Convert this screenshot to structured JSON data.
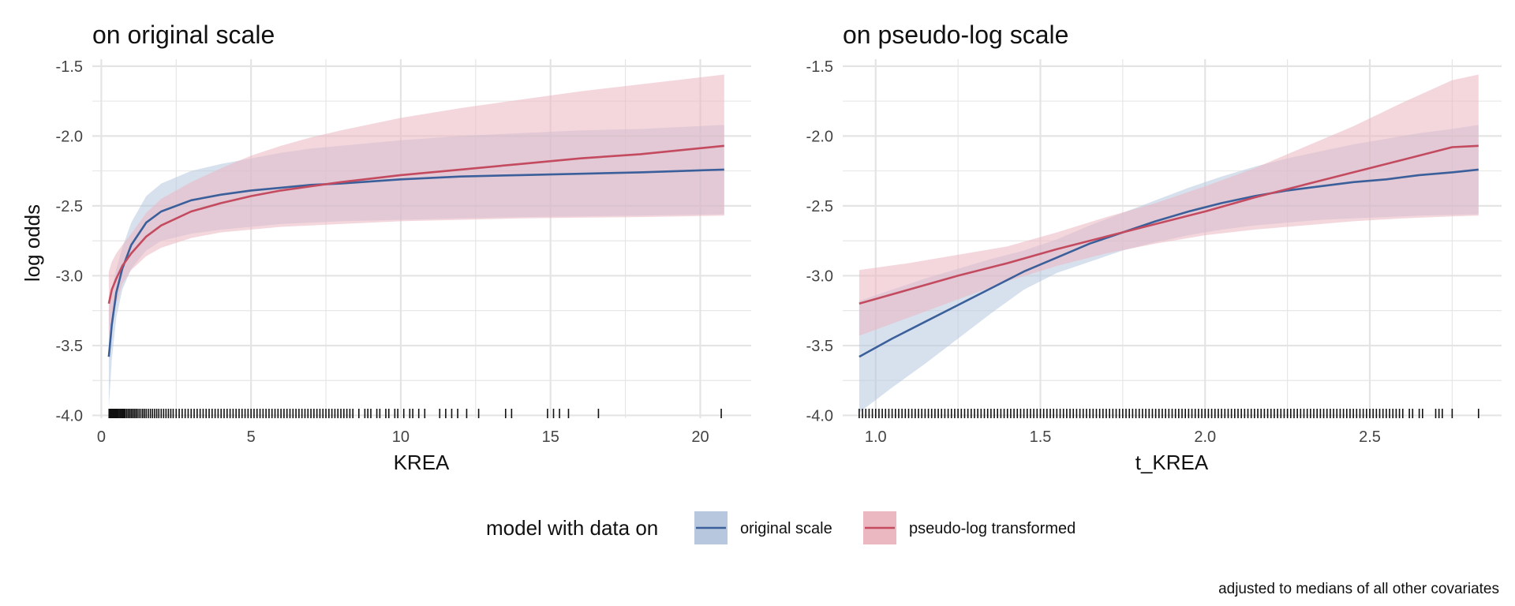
{
  "colors": {
    "original": "#3A5F9A",
    "original_band": "#B7C8DE",
    "pseudo_log": "#C34A5F",
    "pseudo_log_band": "#EBB7C1",
    "grid": "#E4E4E4",
    "rug": "#111111"
  },
  "legend": {
    "title": "model with data on",
    "items": [
      "original scale",
      "pseudo-log transformed"
    ]
  },
  "caption": "adjusted to medians of all other covariates",
  "chart_data": [
    {
      "type": "line",
      "title": "on original scale",
      "xlabel": "KREA",
      "ylabel": "log odds",
      "xlim": [
        -0.3,
        21.7
      ],
      "ylim": [
        -4.02,
        -1.45
      ],
      "x_ticks": [
        0,
        5,
        10,
        15,
        20
      ],
      "x_tick_labels": [
        "0",
        "5",
        "10",
        "15",
        "20"
      ],
      "y_ticks": [
        -4.0,
        -3.5,
        -3.0,
        -2.5,
        -2.0,
        -1.5
      ],
      "y_tick_labels": [
        "-4.0",
        "-3.5",
        "-3.0",
        "-2.5",
        "-2.0",
        "-1.5"
      ],
      "grid": true,
      "series": [
        {
          "name": "original scale",
          "x": [
            0.25,
            0.35,
            0.5,
            0.7,
            1.0,
            1.5,
            2.0,
            3.0,
            4.0,
            5.0,
            6.0,
            7.0,
            8.0,
            10.0,
            12.0,
            14.0,
            16.0,
            18.0,
            20.8
          ],
          "y": [
            -3.58,
            -3.35,
            -3.12,
            -2.95,
            -2.78,
            -2.62,
            -2.54,
            -2.46,
            -2.42,
            -2.39,
            -2.37,
            -2.35,
            -2.34,
            -2.31,
            -2.29,
            -2.28,
            -2.27,
            -2.26,
            -2.24
          ],
          "lower": [
            -3.95,
            -3.6,
            -3.3,
            -3.1,
            -2.95,
            -2.82,
            -2.75,
            -2.7,
            -2.67,
            -2.65,
            -2.63,
            -2.62,
            -2.61,
            -2.6,
            -2.59,
            -2.58,
            -2.575,
            -2.57,
            -2.56
          ],
          "upper": [
            -3.22,
            -3.1,
            -2.95,
            -2.8,
            -2.62,
            -2.43,
            -2.34,
            -2.25,
            -2.2,
            -2.16,
            -2.12,
            -2.09,
            -2.07,
            -2.03,
            -2.0,
            -1.98,
            -1.96,
            -1.95,
            -1.92
          ]
        },
        {
          "name": "pseudo-log transformed",
          "x": [
            0.25,
            0.35,
            0.5,
            0.7,
            1.0,
            1.5,
            2.0,
            3.0,
            4.0,
            5.0,
            6.0,
            7.0,
            8.0,
            10.0,
            12.0,
            14.0,
            16.0,
            18.0,
            20.8
          ],
          "y": [
            -3.2,
            -3.1,
            -3.02,
            -2.93,
            -2.84,
            -2.72,
            -2.64,
            -2.54,
            -2.48,
            -2.43,
            -2.39,
            -2.36,
            -2.33,
            -2.28,
            -2.24,
            -2.2,
            -2.16,
            -2.13,
            -2.07
          ],
          "lower": [
            -3.44,
            -3.3,
            -3.2,
            -3.06,
            -2.96,
            -2.86,
            -2.8,
            -2.73,
            -2.69,
            -2.67,
            -2.65,
            -2.64,
            -2.63,
            -2.61,
            -2.6,
            -2.59,
            -2.585,
            -2.58,
            -2.57
          ],
          "upper": [
            -2.97,
            -2.9,
            -2.84,
            -2.78,
            -2.7,
            -2.55,
            -2.45,
            -2.33,
            -2.23,
            -2.14,
            -2.07,
            -2.01,
            -1.96,
            -1.87,
            -1.8,
            -1.74,
            -1.68,
            -1.63,
            -1.56
          ]
        }
      ],
      "rug": [
        0.26,
        0.28,
        0.3,
        0.32,
        0.35,
        0.38,
        0.41,
        0.44,
        0.47,
        0.5,
        0.53,
        0.56,
        0.6,
        0.64,
        0.68,
        0.72,
        0.76,
        0.8,
        0.85,
        0.9,
        0.95,
        1.0,
        1.05,
        1.1,
        1.15,
        1.2,
        1.26,
        1.32,
        1.38,
        1.44,
        1.5,
        1.57,
        1.64,
        1.71,
        1.78,
        1.85,
        1.92,
        2.0,
        2.08,
        2.16,
        2.24,
        2.32,
        2.4,
        2.5,
        2.6,
        2.7,
        2.8,
        2.9,
        3.0,
        3.1,
        3.2,
        3.3,
        3.4,
        3.5,
        3.6,
        3.7,
        3.8,
        3.9,
        4.0,
        4.1,
        4.2,
        4.3,
        4.4,
        4.5,
        4.6,
        4.7,
        4.8,
        4.9,
        5.0,
        5.1,
        5.2,
        5.3,
        5.4,
        5.5,
        5.6,
        5.7,
        5.8,
        5.9,
        6.0,
        6.1,
        6.2,
        6.3,
        6.4,
        6.5,
        6.6,
        6.7,
        6.8,
        6.9,
        7.0,
        7.1,
        7.2,
        7.3,
        7.4,
        7.5,
        7.6,
        7.7,
        7.8,
        7.9,
        8.0,
        8.1,
        8.2,
        8.3,
        8.4,
        8.6,
        8.8,
        8.9,
        9.0,
        9.2,
        9.3,
        9.5,
        9.6,
        9.8,
        9.9,
        10.1,
        10.3,
        10.4,
        10.6,
        10.8,
        11.3,
        11.5,
        11.7,
        11.9,
        12.2,
        12.6,
        13.5,
        13.7,
        14.9,
        15.1,
        15.3,
        15.6,
        16.6,
        20.7
      ]
    },
    {
      "type": "line",
      "title": "on pseudo-log scale",
      "xlabel": "t_KREA",
      "ylabel": "",
      "xlim": [
        0.9,
        2.9
      ],
      "ylim": [
        -4.02,
        -1.45
      ],
      "x_ticks": [
        1.0,
        1.5,
        2.0,
        2.5
      ],
      "x_tick_labels": [
        "1.0",
        "1.5",
        "2.0",
        "2.5"
      ],
      "y_ticks": [
        -4.0,
        -3.5,
        -3.0,
        -2.5,
        -2.0,
        -1.5
      ],
      "y_tick_labels": [
        "-4.0",
        "-3.5",
        "-3.0",
        "-2.5",
        "-2.0",
        "-1.5"
      ],
      "grid": true,
      "series": [
        {
          "name": "original scale",
          "x": [
            0.95,
            1.05,
            1.15,
            1.25,
            1.35,
            1.45,
            1.55,
            1.65,
            1.75,
            1.85,
            1.95,
            2.05,
            2.15,
            2.25,
            2.35,
            2.45,
            2.55,
            2.65,
            2.75,
            2.83
          ],
          "y": [
            -3.58,
            -3.45,
            -3.33,
            -3.21,
            -3.09,
            -2.97,
            -2.87,
            -2.77,
            -2.69,
            -2.61,
            -2.54,
            -2.48,
            -2.43,
            -2.39,
            -2.36,
            -2.33,
            -2.31,
            -2.28,
            -2.26,
            -2.24
          ],
          "lower": [
            -3.98,
            -3.8,
            -3.63,
            -3.45,
            -3.27,
            -3.1,
            -2.98,
            -2.9,
            -2.82,
            -2.76,
            -2.71,
            -2.67,
            -2.64,
            -2.62,
            -2.6,
            -2.59,
            -2.58,
            -2.57,
            -2.565,
            -2.56
          ],
          "upper": [
            -3.18,
            -3.1,
            -3.02,
            -2.95,
            -2.88,
            -2.82,
            -2.74,
            -2.64,
            -2.55,
            -2.46,
            -2.37,
            -2.29,
            -2.22,
            -2.16,
            -2.11,
            -2.06,
            -2.02,
            -1.98,
            -1.95,
            -1.92
          ]
        },
        {
          "name": "pseudo-log transformed",
          "x": [
            0.95,
            1.1,
            1.25,
            1.4,
            1.55,
            1.7,
            1.85,
            2.0,
            2.15,
            2.3,
            2.45,
            2.6,
            2.75,
            2.83
          ],
          "y": [
            -3.2,
            -3.1,
            -3.0,
            -2.91,
            -2.81,
            -2.72,
            -2.63,
            -2.54,
            -2.44,
            -2.35,
            -2.26,
            -2.17,
            -2.08,
            -2.07
          ],
          "lower": [
            -3.43,
            -3.3,
            -3.17,
            -3.04,
            -2.93,
            -2.84,
            -2.77,
            -2.71,
            -2.67,
            -2.64,
            -2.61,
            -2.59,
            -2.575,
            -2.57
          ],
          "upper": [
            -2.96,
            -2.91,
            -2.85,
            -2.79,
            -2.69,
            -2.58,
            -2.48,
            -2.36,
            -2.23,
            -2.08,
            -1.93,
            -1.76,
            -1.6,
            -1.56
          ]
        }
      ],
      "rug": [
        0.95,
        0.96,
        0.97,
        0.98,
        0.99,
        1.0,
        1.01,
        1.02,
        1.03,
        1.04,
        1.05,
        1.06,
        1.07,
        1.08,
        1.09,
        1.1,
        1.11,
        1.12,
        1.13,
        1.14,
        1.15,
        1.16,
        1.17,
        1.18,
        1.19,
        1.2,
        1.21,
        1.22,
        1.23,
        1.24,
        1.25,
        1.26,
        1.27,
        1.28,
        1.29,
        1.3,
        1.31,
        1.32,
        1.33,
        1.34,
        1.35,
        1.36,
        1.37,
        1.38,
        1.39,
        1.4,
        1.41,
        1.42,
        1.43,
        1.44,
        1.45,
        1.46,
        1.47,
        1.48,
        1.49,
        1.5,
        1.51,
        1.52,
        1.53,
        1.54,
        1.55,
        1.56,
        1.57,
        1.58,
        1.59,
        1.6,
        1.61,
        1.62,
        1.63,
        1.64,
        1.65,
        1.66,
        1.67,
        1.68,
        1.69,
        1.7,
        1.71,
        1.72,
        1.73,
        1.74,
        1.75,
        1.76,
        1.77,
        1.78,
        1.79,
        1.8,
        1.81,
        1.82,
        1.83,
        1.84,
        1.85,
        1.86,
        1.87,
        1.88,
        1.89,
        1.9,
        1.91,
        1.92,
        1.93,
        1.94,
        1.95,
        1.96,
        1.97,
        1.98,
        1.99,
        2.0,
        2.01,
        2.02,
        2.03,
        2.04,
        2.05,
        2.06,
        2.07,
        2.08,
        2.09,
        2.1,
        2.11,
        2.12,
        2.13,
        2.14,
        2.15,
        2.16,
        2.17,
        2.18,
        2.19,
        2.2,
        2.21,
        2.22,
        2.23,
        2.24,
        2.25,
        2.26,
        2.27,
        2.28,
        2.29,
        2.3,
        2.31,
        2.32,
        2.33,
        2.34,
        2.35,
        2.36,
        2.37,
        2.38,
        2.39,
        2.4,
        2.41,
        2.42,
        2.43,
        2.44,
        2.45,
        2.46,
        2.47,
        2.48,
        2.49,
        2.5,
        2.51,
        2.52,
        2.53,
        2.54,
        2.55,
        2.56,
        2.57,
        2.58,
        2.59,
        2.6,
        2.62,
        2.63,
        2.65,
        2.66,
        2.7,
        2.71,
        2.72,
        2.75,
        2.83
      ]
    }
  ]
}
